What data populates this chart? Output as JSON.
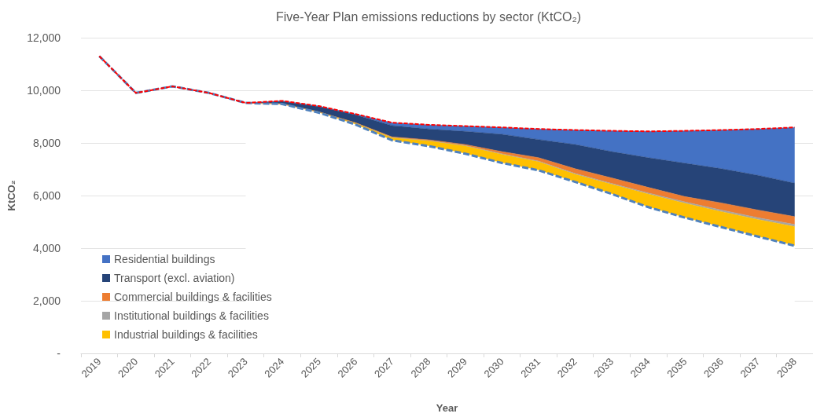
{
  "chart_data": {
    "type": "area",
    "title": "Five-Year Plan emissions reductions by sector (KtCO₂)",
    "xlabel": "Year",
    "ylabel": "KtCO₂",
    "categories": [
      "2019",
      "2020",
      "2021",
      "2022",
      "2023",
      "2024",
      "2025",
      "2026",
      "2027",
      "2028",
      "2029",
      "2030",
      "2031",
      "2032",
      "2033",
      "2034",
      "2035",
      "2036",
      "2037",
      "2038"
    ],
    "stacked": true,
    "series": [
      {
        "type": "area",
        "color": "#ffffff",
        "values": [
          null,
          null,
          null,
          null,
          9520,
          9480,
          9150,
          8700,
          8100,
          7880,
          7590,
          7240,
          6960,
          6520,
          6060,
          5560,
          5160,
          4800,
          4440,
          4090
        ]
      },
      {
        "name": "Industrial buildings & facilities",
        "color": "#ffc000",
        "values": [
          null,
          null,
          null,
          null,
          0,
          0,
          30,
          60,
          100,
          200,
          300,
          330,
          330,
          290,
          370,
          500,
          550,
          590,
          650,
          730
        ]
      },
      {
        "name": "Institutional buildings & facilities",
        "color": "#a5a5a5",
        "values": [
          null,
          null,
          null,
          null,
          0,
          0,
          0,
          0,
          10,
          10,
          10,
          20,
          20,
          30,
          30,
          40,
          50,
          60,
          70,
          80
        ]
      },
      {
        "name": "Commercial buildings & facilities",
        "color": "#ed7d31",
        "values": [
          null,
          null,
          null,
          null,
          0,
          0,
          0,
          10,
          20,
          30,
          40,
          80,
          130,
          180,
          210,
          210,
          200,
          270,
          290,
          300
        ]
      },
      {
        "name": "Transport (excl. aviation)",
        "color": "#264478",
        "values": [
          null,
          null,
          null,
          null,
          0,
          100,
          200,
          300,
          430,
          410,
          500,
          660,
          690,
          920,
          1000,
          1130,
          1270,
          1300,
          1320,
          1270
        ]
      },
      {
        "name": "Residential buildings",
        "color": "#4472c4",
        "values": [
          null,
          null,
          null,
          null,
          0,
          20,
          20,
          30,
          110,
          160,
          200,
          260,
          400,
          550,
          790,
          1000,
          1230,
          1470,
          1760,
          2120
        ]
      },
      {
        "type": "line",
        "color": "#4f81bd",
        "line_style": "dashed",
        "values": [
          11300,
          9900,
          10150,
          9900,
          9520,
          9480,
          9150,
          8700,
          8100,
          7880,
          7590,
          7240,
          6960,
          6520,
          6060,
          5560,
          5160,
          4800,
          4440,
          4090
        ]
      },
      {
        "type": "line",
        "color": "#ff0000",
        "line_style": "dashed",
        "values": [
          11300,
          9900,
          10150,
          9900,
          9520,
          9600,
          9400,
          9100,
          8770,
          8690,
          8640,
          8590,
          8530,
          8490,
          8460,
          8440,
          8460,
          8490,
          8530,
          8590
        ]
      }
    ],
    "ylim": [
      0,
      12000
    ],
    "yticks": [
      {
        "value": 0,
        "label": "-"
      },
      {
        "value": 2000,
        "label": "2,000"
      },
      {
        "value": 4000,
        "label": "4,000"
      },
      {
        "value": 6000,
        "label": "6,000"
      },
      {
        "value": 8000,
        "label": "8,000"
      },
      {
        "value": 10000,
        "label": "10,000"
      },
      {
        "value": 12000,
        "label": "12,000"
      }
    ],
    "grid": "y",
    "legend": "bottom left",
    "marker": "none"
  }
}
